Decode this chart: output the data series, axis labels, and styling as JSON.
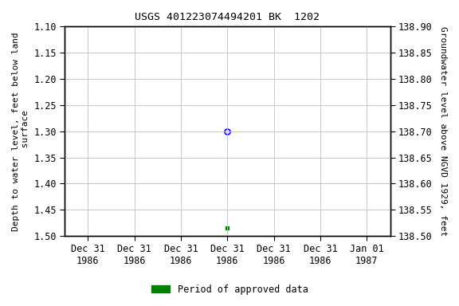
{
  "title": "USGS 401223074494201 BK  1202",
  "ylabel_left_lines": [
    "Depth to water level, feet below land",
    " surface"
  ],
  "ylabel_right": "Groundwater level above NGVD 1929, feet",
  "ylim_left": [
    1.1,
    1.5
  ],
  "ylim_right": [
    138.5,
    138.9
  ],
  "yticks_left": [
    1.1,
    1.15,
    1.2,
    1.25,
    1.3,
    1.35,
    1.4,
    1.45,
    1.5
  ],
  "yticks_right": [
    138.5,
    138.55,
    138.6,
    138.65,
    138.7,
    138.75,
    138.8,
    138.85,
    138.9
  ],
  "blue_point": {
    "depth": 1.3
  },
  "green_point": {
    "depth": 1.485
  },
  "background_color": "#ffffff",
  "grid_color": "#c8c8c8",
  "legend_label": "Period of approved data",
  "legend_color": "#008000",
  "tick_font_size": 8.5,
  "label_font_size": 8,
  "title_font_size": 9.5,
  "legend_font_size": 8.5
}
